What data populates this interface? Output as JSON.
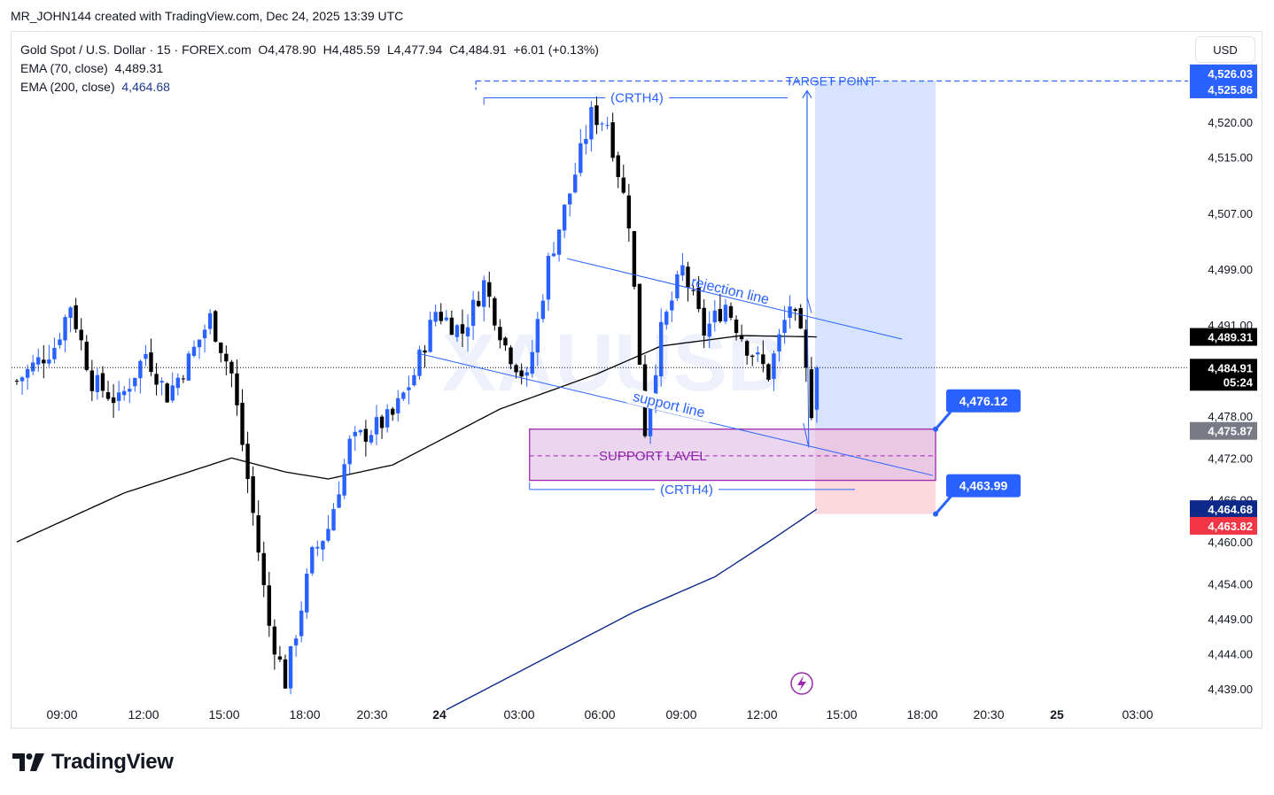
{
  "header": {
    "created_by": "MR_JOHN144 created with TradingView.com, Dec 24, 2025 13:39 UTC"
  },
  "legend": {
    "symbol_line": "Gold Spot / U.S. Dollar · 15 · FOREX.com",
    "open": "O4,478.90",
    "high": "H4,485.59",
    "low": "L4,477.94",
    "close": "C4,484.91",
    "change": "+6.01 (+0.13%)",
    "ema70_label": "EMA (70, close)",
    "ema70_value": "4,489.31",
    "ema200_label": "EMA (200, close)",
    "ema200_value": "4,464.68"
  },
  "currency_button": "USD",
  "watermark": "XAUUSD",
  "footer": {
    "brand": "TradingView"
  },
  "colors": {
    "up": "#2962ff",
    "down": "#000000",
    "ema70": "#000000",
    "ema200": "#0d2a8a",
    "support_zone": "#e1bee7",
    "support_border": "#9c27b0",
    "target_zone": "#d6e3ff",
    "stop_zone": "#fbd9de",
    "annot": "#2962ff"
  },
  "chart_data": {
    "type": "candlestick",
    "symbol": "XAUUSD",
    "timeframe": "15",
    "ylim": [
      4435,
      4530
    ],
    "y_ticks": [
      4439,
      4444,
      4449,
      4454,
      4460,
      4466,
      4472,
      4478,
      4491,
      4499,
      4507,
      4515,
      4520
    ],
    "y_tick_labels": [
      "4,439.00",
      "4,444.00",
      "4,449.00",
      "4,454.00",
      "4,460.00",
      "4,466.00",
      "4,472.00",
      "4,478.00",
      "4,491.00",
      "4,499.00",
      "4,507.00",
      "4,515.00",
      "4,520.00"
    ],
    "x_tick_labels": [
      "09:00",
      "12:00",
      "15:00",
      "18:00",
      "20:30",
      "24",
      "03:00",
      "06:00",
      "09:00",
      "12:00",
      "15:00",
      "18:00",
      "20:30",
      "25",
      "03:00"
    ],
    "bar_count": 150,
    "key_points": [
      {
        "bar": 0,
        "price": 4483
      },
      {
        "bar": 7,
        "price": 4488
      },
      {
        "bar": 10,
        "price": 4494
      },
      {
        "bar": 14,
        "price": 4483
      },
      {
        "bar": 19,
        "price": 4480
      },
      {
        "bar": 24,
        "price": 4487
      },
      {
        "bar": 28,
        "price": 4481
      },
      {
        "bar": 32,
        "price": 4486
      },
      {
        "bar": 36,
        "price": 4492
      },
      {
        "bar": 40,
        "price": 4484
      },
      {
        "bar": 44,
        "price": 4464
      },
      {
        "bar": 47,
        "price": 4448
      },
      {
        "bar": 50,
        "price": 4440
      },
      {
        "bar": 55,
        "price": 4458
      },
      {
        "bar": 58,
        "price": 4462
      },
      {
        "bar": 62,
        "price": 4474
      },
      {
        "bar": 66,
        "price": 4476
      },
      {
        "bar": 70,
        "price": 4478
      },
      {
        "bar": 74,
        "price": 4484
      },
      {
        "bar": 78,
        "price": 4493
      },
      {
        "bar": 83,
        "price": 4490
      },
      {
        "bar": 87,
        "price": 4497
      },
      {
        "bar": 91,
        "price": 4488
      },
      {
        "bar": 95,
        "price": 4483
      },
      {
        "bar": 99,
        "price": 4500
      },
      {
        "bar": 103,
        "price": 4510
      },
      {
        "bar": 107,
        "price": 4521
      },
      {
        "bar": 110,
        "price": 4520
      },
      {
        "bar": 114,
        "price": 4506
      },
      {
        "bar": 117,
        "price": 4476
      },
      {
        "bar": 120,
        "price": 4490
      },
      {
        "bar": 124,
        "price": 4499
      },
      {
        "bar": 128,
        "price": 4490
      },
      {
        "bar": 132,
        "price": 4494
      },
      {
        "bar": 136,
        "price": 4488
      },
      {
        "bar": 140,
        "price": 4484
      },
      {
        "bar": 144,
        "price": 4494
      },
      {
        "bar": 146,
        "price": 4489
      },
      {
        "bar": 148,
        "price": 4479
      },
      {
        "bar": 149,
        "price": 4484.91
      }
    ],
    "ema70": [
      {
        "bar": 0,
        "price": 4460
      },
      {
        "bar": 20,
        "price": 4467
      },
      {
        "bar": 40,
        "price": 4472
      },
      {
        "bar": 50,
        "price": 4470
      },
      {
        "bar": 58,
        "price": 4469
      },
      {
        "bar": 70,
        "price": 4471
      },
      {
        "bar": 90,
        "price": 4479
      },
      {
        "bar": 108,
        "price": 4484
      },
      {
        "bar": 120,
        "price": 4488
      },
      {
        "bar": 135,
        "price": 4489.5
      },
      {
        "bar": 149,
        "price": 4489.31
      }
    ],
    "ema200": [
      {
        "bar": 80,
        "price": 4436
      },
      {
        "bar": 100,
        "price": 4444
      },
      {
        "bar": 115,
        "price": 4450
      },
      {
        "bar": 130,
        "price": 4455
      },
      {
        "bar": 140,
        "price": 4460
      },
      {
        "bar": 149,
        "price": 4464.68
      }
    ],
    "price_labels": [
      {
        "value": "4,526.03",
        "style": "blue"
      },
      {
        "value": "4,525.86",
        "style": "blue"
      },
      {
        "value": "4,489.31",
        "style": "black"
      },
      {
        "value": "4,484.91",
        "style": "black",
        "timer": "05:24"
      },
      {
        "value": "4,475.87",
        "style": "grey"
      },
      {
        "value": "4,464.68",
        "style": "navy"
      },
      {
        "value": "4,463.82",
        "style": "red"
      }
    ],
    "annotations": {
      "target_label": "TARGET POINT",
      "crth4_top": "(CRTH4)",
      "crth4_bottom": "(CRTH4)",
      "rejection_line": "rejection line",
      "support_line": "support line",
      "support_zone": "SUPPORT LAVEL",
      "callout_upper": "4,476.12",
      "callout_lower": "4,463.99"
    },
    "levels": {
      "target": 4525.9,
      "support_top": 4476.12,
      "support_mid": 4472.3,
      "support_bottom": 4468.8,
      "stop": 4463.99
    }
  }
}
